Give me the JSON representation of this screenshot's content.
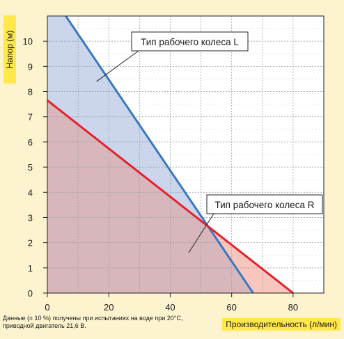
{
  "chart_data": {
    "type": "area",
    "xlabel": "Производительность (л/мин)",
    "ylabel": "Напор (м)",
    "xlim": [
      0,
      90
    ],
    "ylim": [
      0,
      11
    ],
    "xticks": [
      0,
      20,
      40,
      60,
      80
    ],
    "yticks": [
      0,
      1,
      2,
      3,
      4,
      5,
      6,
      7,
      8,
      9,
      10
    ],
    "grid": true,
    "series": [
      {
        "name": "Тип рабочего колеса L",
        "color": "#3a78c0",
        "fill": "#cbd5ec",
        "x": [
          6,
          67
        ],
        "y": [
          11,
          0
        ]
      },
      {
        "name": "Тип рабочего колеса R",
        "color": "#e5202a",
        "fill": "#f9c6be",
        "x": [
          0,
          80
        ],
        "y": [
          7.65,
          0
        ]
      }
    ],
    "overlap_fill": "#d7b6bc",
    "annotations": [
      {
        "text": "Тип рабочего колеса L",
        "pointer": [
          16,
          8.4
        ]
      },
      {
        "text": "Тип рабочего колеса R",
        "pointer": [
          46,
          1.6
        ]
      }
    ],
    "note": "Данные (± 10 %) получены при испытаниях на воде при 20°C, приводной двигатель 21,6 В."
  }
}
